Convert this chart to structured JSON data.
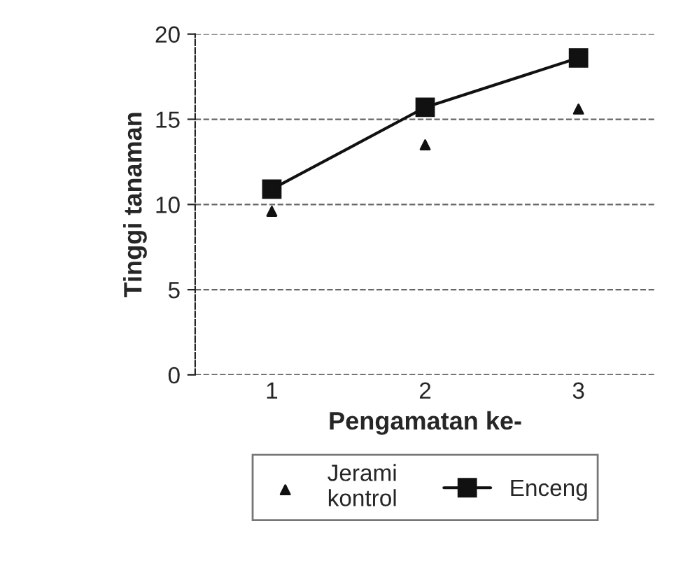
{
  "chart_data": {
    "type": "line",
    "xlabel": "Pengamatan ke-",
    "ylabel": "Tinggi tanaman",
    "categories": [
      "1",
      "2",
      "3"
    ],
    "ylim": [
      0,
      20
    ],
    "yticks": [
      0,
      5,
      10,
      15,
      20
    ],
    "grid": "y",
    "legend": "bottom",
    "series": [
      {
        "name": "Jerami\nkontrol",
        "type": "scatter",
        "marker": "triangle",
        "color": "#111111",
        "values": [
          9.6,
          13.5,
          15.6
        ]
      },
      {
        "name": "Enceng",
        "marker": "square",
        "line_style": "solid",
        "color": "#111111",
        "values": [
          10.9,
          15.7,
          18.6
        ]
      }
    ]
  }
}
